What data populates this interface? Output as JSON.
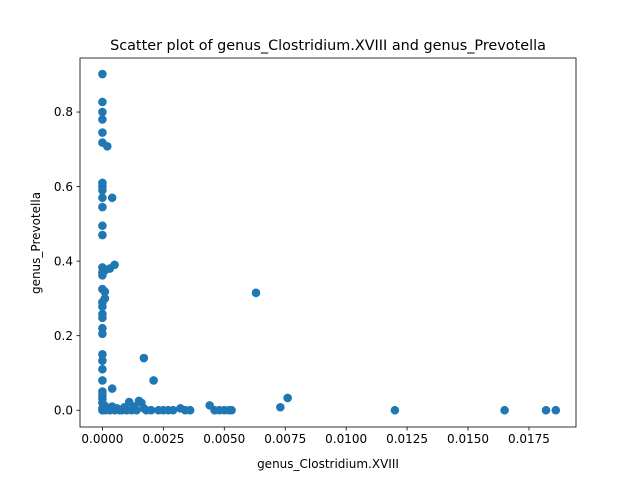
{
  "chart_data": {
    "type": "scatter",
    "title": "Scatter plot of genus_Clostridium.XVIII and genus_Prevotella",
    "xlabel": "genus_Clostridium.XVIII",
    "ylabel": "genus_Prevotella",
    "xlim": [
      -0.00092,
      0.01943
    ],
    "ylim": [
      -0.045,
      0.945
    ],
    "x_ticks": [
      {
        "value": 0.0,
        "label": "0.0000"
      },
      {
        "value": 0.0025,
        "label": "0.0025"
      },
      {
        "value": 0.005,
        "label": "0.0050"
      },
      {
        "value": 0.0075,
        "label": "0.0075"
      },
      {
        "value": 0.01,
        "label": "0.0100"
      },
      {
        "value": 0.0125,
        "label": "0.0125"
      },
      {
        "value": 0.015,
        "label": "0.0150"
      },
      {
        "value": 0.0175,
        "label": "0.0175"
      }
    ],
    "y_ticks": [
      {
        "value": 0.0,
        "label": "0.0"
      },
      {
        "value": 0.2,
        "label": "0.2"
      },
      {
        "value": 0.4,
        "label": "0.4"
      },
      {
        "value": 0.6,
        "label": "0.6"
      },
      {
        "value": 0.8,
        "label": "0.8"
      }
    ],
    "grid": false,
    "marker_color": "#1f77b4",
    "points": [
      {
        "x": 0.0,
        "y": 0.902
      },
      {
        "x": 0.0,
        "y": 0.827
      },
      {
        "x": 0.0,
        "y": 0.8
      },
      {
        "x": 0.0,
        "y": 0.78
      },
      {
        "x": 0.0,
        "y": 0.745
      },
      {
        "x": 0.0,
        "y": 0.718
      },
      {
        "x": 0.0002,
        "y": 0.708
      },
      {
        "x": 0.0,
        "y": 0.61
      },
      {
        "x": 0.0,
        "y": 0.6
      },
      {
        "x": 0.0,
        "y": 0.59
      },
      {
        "x": 0.0,
        "y": 0.57
      },
      {
        "x": 0.0004,
        "y": 0.57
      },
      {
        "x": 0.0,
        "y": 0.545
      },
      {
        "x": 0.0,
        "y": 0.495
      },
      {
        "x": 0.0,
        "y": 0.47
      },
      {
        "x": 0.0005,
        "y": 0.39
      },
      {
        "x": 0.0,
        "y": 0.383
      },
      {
        "x": 0.0003,
        "y": 0.38
      },
      {
        "x": 0.0001,
        "y": 0.375
      },
      {
        "x": 0.0,
        "y": 0.37
      },
      {
        "x": 0.0,
        "y": 0.362
      },
      {
        "x": 0.0,
        "y": 0.325
      },
      {
        "x": 0.0001,
        "y": 0.318
      },
      {
        "x": 0.0001,
        "y": 0.3
      },
      {
        "x": 0.0,
        "y": 0.29
      },
      {
        "x": 0.0,
        "y": 0.278
      },
      {
        "x": 0.0,
        "y": 0.258
      },
      {
        "x": 0.0,
        "y": 0.248
      },
      {
        "x": 0.0,
        "y": 0.22
      },
      {
        "x": 0.0,
        "y": 0.205
      },
      {
        "x": 0.0,
        "y": 0.15
      },
      {
        "x": 0.0,
        "y": 0.133
      },
      {
        "x": 0.0,
        "y": 0.11
      },
      {
        "x": 0.0,
        "y": 0.08
      },
      {
        "x": 0.0004,
        "y": 0.058
      },
      {
        "x": 0.0,
        "y": 0.05
      },
      {
        "x": 0.0,
        "y": 0.04
      },
      {
        "x": 0.0,
        "y": 0.03
      },
      {
        "x": 0.0,
        "y": 0.02
      },
      {
        "x": 0.0001,
        "y": 0.012
      },
      {
        "x": 0.0,
        "y": 0.005
      },
      {
        "x": 0.0,
        "y": 0.0
      },
      {
        "x": 0.0001,
        "y": 0.0
      },
      {
        "x": 0.0002,
        "y": 0.002
      },
      {
        "x": 0.0003,
        "y": 0.0
      },
      {
        "x": 0.0004,
        "y": 0.01
      },
      {
        "x": 0.0005,
        "y": 0.0
      },
      {
        "x": 0.0006,
        "y": 0.005
      },
      {
        "x": 0.0007,
        "y": 0.0
      },
      {
        "x": 0.0008,
        "y": 0.0
      },
      {
        "x": 0.0009,
        "y": 0.008
      },
      {
        "x": 0.001,
        "y": 0.0
      },
      {
        "x": 0.0011,
        "y": 0.022
      },
      {
        "x": 0.0012,
        "y": 0.0
      },
      {
        "x": 0.0013,
        "y": 0.01
      },
      {
        "x": 0.0014,
        "y": 0.0
      },
      {
        "x": 0.0015,
        "y": 0.025
      },
      {
        "x": 0.0016,
        "y": 0.02
      },
      {
        "x": 0.0017,
        "y": 0.005
      },
      {
        "x": 0.0018,
        "y": 0.0
      },
      {
        "x": 0.0017,
        "y": 0.14
      },
      {
        "x": 0.0021,
        "y": 0.08
      },
      {
        "x": 0.002,
        "y": 0.0
      },
      {
        "x": 0.0023,
        "y": 0.0
      },
      {
        "x": 0.0025,
        "y": 0.0
      },
      {
        "x": 0.0027,
        "y": 0.0
      },
      {
        "x": 0.0029,
        "y": 0.0
      },
      {
        "x": 0.0032,
        "y": 0.005
      },
      {
        "x": 0.0034,
        "y": 0.0
      },
      {
        "x": 0.0036,
        "y": 0.0
      },
      {
        "x": 0.0044,
        "y": 0.013
      },
      {
        "x": 0.0046,
        "y": 0.0
      },
      {
        "x": 0.0048,
        "y": 0.0
      },
      {
        "x": 0.005,
        "y": 0.0
      },
      {
        "x": 0.0052,
        "y": 0.0
      },
      {
        "x": 0.0053,
        "y": 0.0
      },
      {
        "x": 0.0063,
        "y": 0.315
      },
      {
        "x": 0.0073,
        "y": 0.008
      },
      {
        "x": 0.0076,
        "y": 0.033
      },
      {
        "x": 0.012,
        "y": 0.0
      },
      {
        "x": 0.0165,
        "y": 0.0
      },
      {
        "x": 0.0182,
        "y": 0.0
      },
      {
        "x": 0.0186,
        "y": 0.0
      }
    ]
  }
}
